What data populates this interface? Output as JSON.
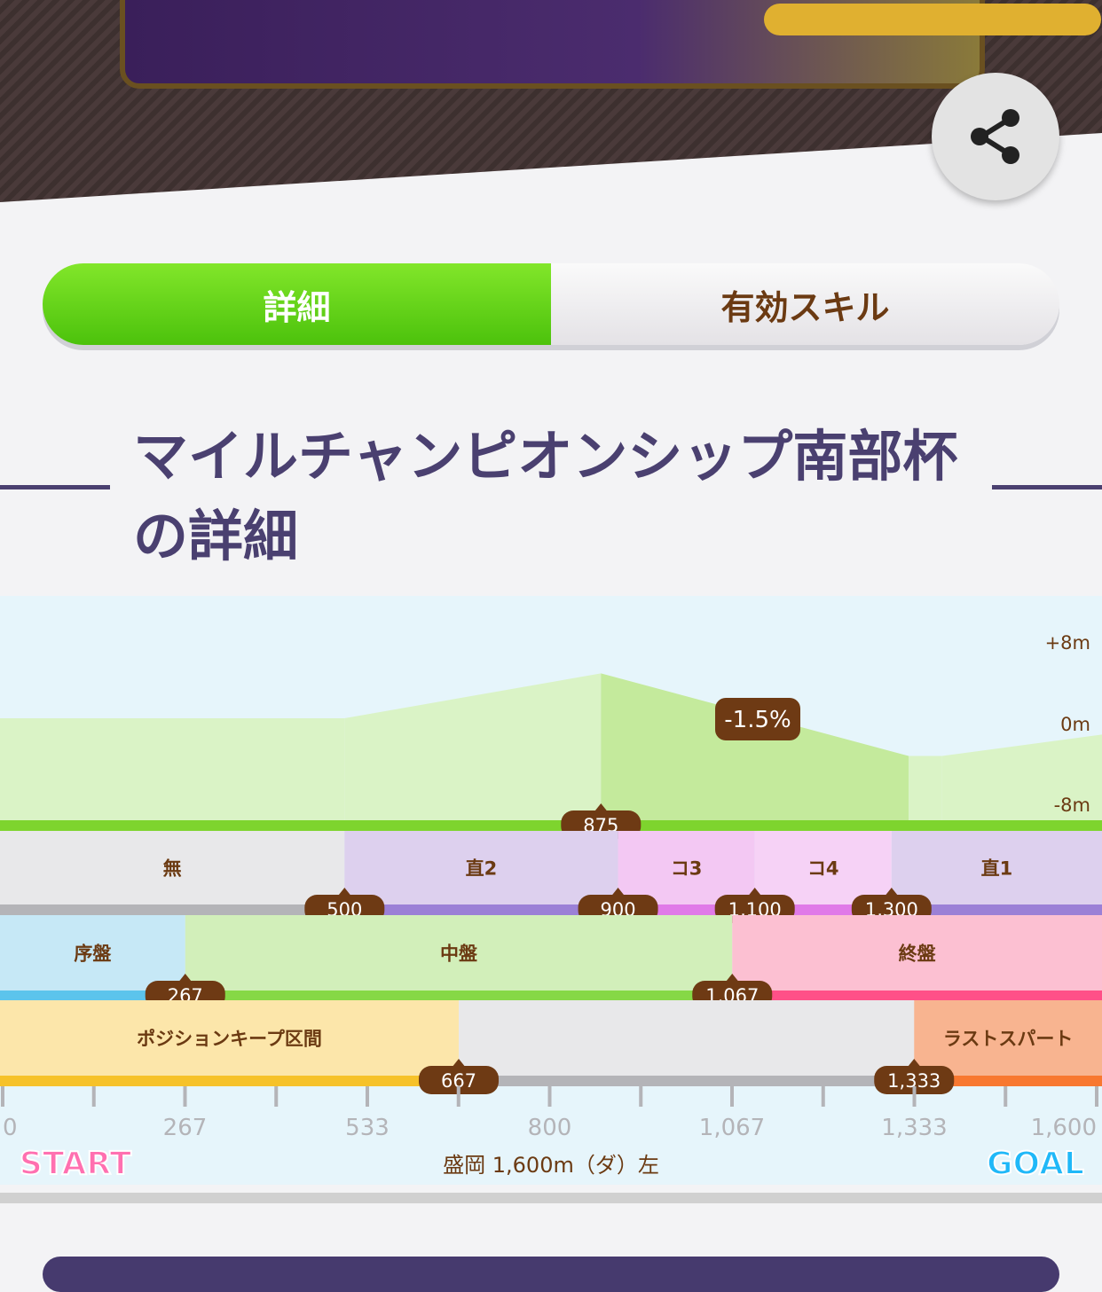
{
  "header": {
    "share_icon": "share-icon"
  },
  "tabs": [
    {
      "label": "詳細",
      "active": true
    },
    {
      "label": "有効スキル",
      "active": false
    }
  ],
  "title": {
    "line1": "マイルチャンピオンシップ南部杯",
    "line2": "の詳細"
  },
  "course": {
    "name": "盛岡 1,600m（ダ）左",
    "distance": 1600,
    "start_label": "START",
    "goal_label": "GOAL",
    "elevation_ticks": [
      "+8m",
      "0m",
      "-8m"
    ],
    "elevation_profile": [
      [
        0,
        0.7
      ],
      [
        500,
        0.7
      ],
      [
        875,
        5.1
      ],
      [
        1325,
        -3.0
      ],
      [
        1374,
        -3.0
      ],
      [
        1600,
        -0.9
      ]
    ],
    "slope_label": "-1.5%",
    "slope_marker": "875",
    "distance_ticks": [
      "0",
      "267",
      "533",
      "800",
      "1,067",
      "1,333",
      "1,600"
    ],
    "sections": [
      {
        "label": "無",
        "from": 0,
        "to": 500,
        "color": "#e8e8ea",
        "bar": "#b4b4b8"
      },
      {
        "label": "直2",
        "from": 500,
        "to": 900,
        "color": "#ddd0ee",
        "bar": "#9b80d6"
      },
      {
        "label": "コ3",
        "from": 900,
        "to": 1100,
        "color": "#f3c8f3",
        "bar": "#e07ae8"
      },
      {
        "label": "コ4",
        "from": 1100,
        "to": 1300,
        "color": "#f6d2f6",
        "bar": "#e07ae8"
      },
      {
        "label": "直1",
        "from": 1300,
        "to": 1600,
        "color": "#ddd0ee",
        "bar": "#9b80d6"
      }
    ],
    "section_markers": [
      "500",
      "900",
      "1,100",
      "1,300"
    ],
    "phases": [
      {
        "label": "序盤",
        "from": 0,
        "to": 267,
        "color": "#c6e8f6",
        "bar": "#5cc4ec"
      },
      {
        "label": "中盤",
        "from": 267,
        "to": 1067,
        "color": "#d2efba",
        "bar": "#86d846"
      },
      {
        "label": "終盤",
        "from": 1067,
        "to": 1600,
        "color": "#fcc0d2",
        "bar": "#ff5088"
      }
    ],
    "phase_markers": [
      "267",
      "1,067"
    ],
    "zones": [
      {
        "label": "ポジションキープ区間",
        "from": 0,
        "to": 667,
        "color": "#fce6aa",
        "bar": "#f6c22a"
      },
      {
        "label": "",
        "from": 667,
        "to": 1333,
        "color": "#e8e8ea",
        "bar": "#b4b4b8"
      },
      {
        "label": "ラストスパート",
        "from": 1333,
        "to": 1600,
        "color": "#f8b490",
        "bar": "#f87830"
      }
    ],
    "zone_markers": [
      "667",
      "1,333"
    ]
  }
}
